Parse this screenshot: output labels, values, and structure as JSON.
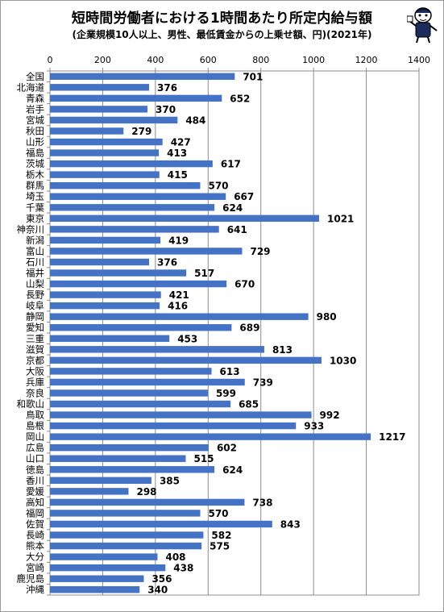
{
  "chart_data": {
    "type": "bar",
    "orientation": "horizontal",
    "title": "短時間労働者における1時間あたり所定内給与額",
    "subtitle": "(企業規模10人以上、男性、最低賃金からの上乗せ額、円)(2021年)",
    "xlim": [
      0,
      1400
    ],
    "xticks": [
      "0",
      "200",
      "400",
      "600",
      "800",
      "1000",
      "1200",
      "1400"
    ],
    "xtick_values": [
      0,
      200,
      400,
      600,
      800,
      1000,
      1200,
      1400
    ],
    "grid": true,
    "legend": "none",
    "bar_color": "#4472c4",
    "categories": [
      "全国",
      "北海道",
      "青森",
      "岩手",
      "宮城",
      "秋田",
      "山形",
      "福島",
      "茨城",
      "栃木",
      "群馬",
      "埼玉",
      "千葉",
      "東京",
      "神奈川",
      "新潟",
      "富山",
      "石川",
      "福井",
      "山梨",
      "長野",
      "岐阜",
      "静岡",
      "愛知",
      "三重",
      "滋賀",
      "京都",
      "大阪",
      "兵庫",
      "奈良",
      "和歌山",
      "鳥取",
      "島根",
      "岡山",
      "広島",
      "山口",
      "徳島",
      "香川",
      "愛媛",
      "高知",
      "福岡",
      "佐賀",
      "長崎",
      "熊本",
      "大分",
      "宮崎",
      "鹿児島",
      "沖縄"
    ],
    "values": [
      701,
      376,
      652,
      370,
      484,
      279,
      427,
      413,
      617,
      415,
      570,
      667,
      624,
      1021,
      641,
      419,
      729,
      376,
      517,
      670,
      421,
      416,
      980,
      689,
      453,
      813,
      1030,
      613,
      739,
      599,
      685,
      992,
      933,
      1217,
      602,
      515,
      624,
      385,
      298,
      738,
      570,
      843,
      582,
      575,
      408,
      438,
      356,
      340
    ],
    "value_labels": [
      "701",
      "376",
      "652",
      "370",
      "484",
      "279",
      "427",
      "413",
      "617",
      "415",
      "570",
      "667",
      "624",
      "1021",
      "641",
      "419",
      "729",
      "376",
      "517",
      "670",
      "421",
      "416",
      "980",
      "689",
      "453",
      "813",
      "1030",
      "613",
      "739",
      "599",
      "685",
      "992",
      "933",
      "1217",
      "602",
      "515",
      "624",
      "385",
      "298",
      "738",
      "570",
      "843",
      "582",
      "575",
      "408",
      "438",
      "356",
      "340"
    ]
  },
  "mascot": {
    "icon": "mascot-character-icon"
  }
}
